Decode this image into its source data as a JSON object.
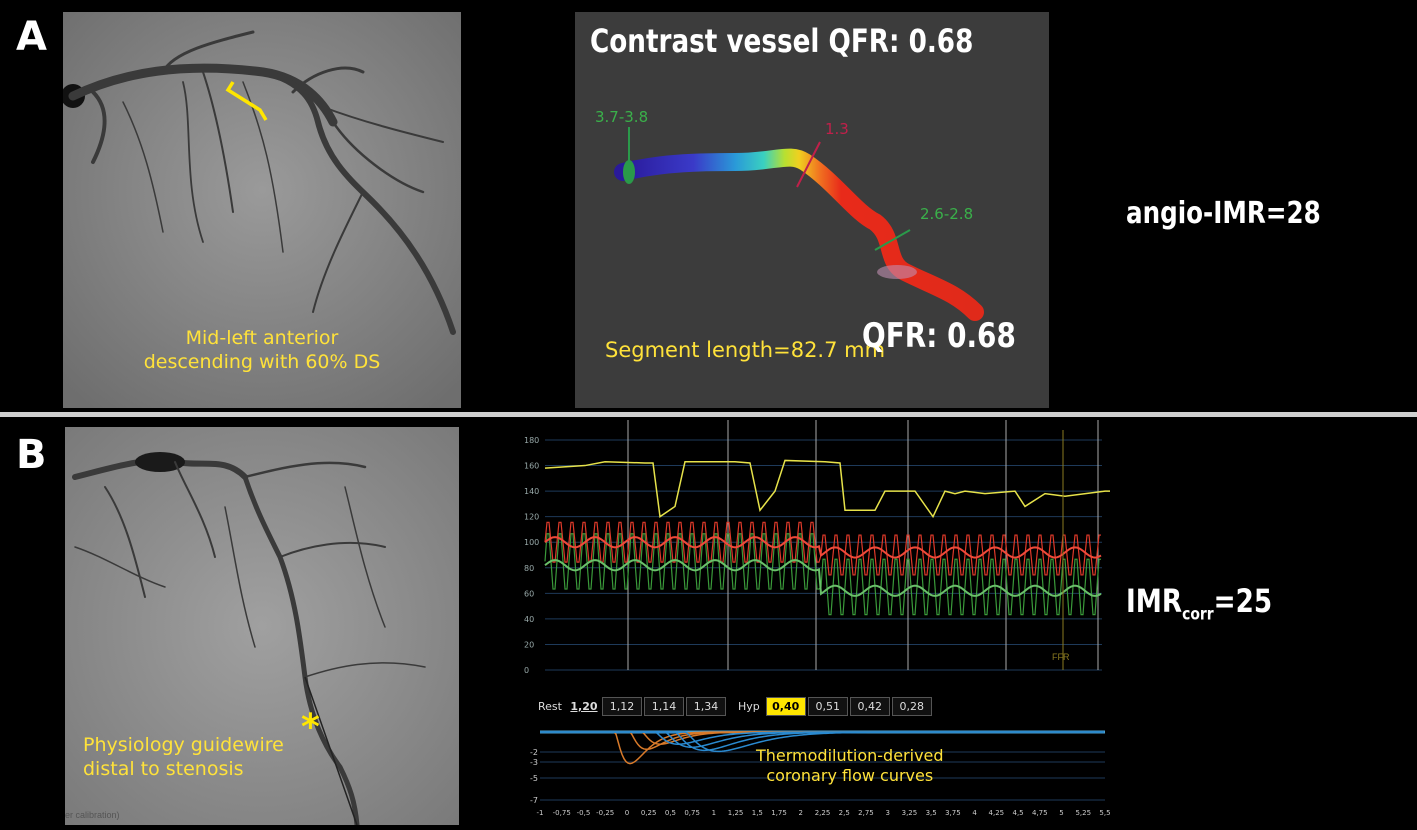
{
  "panelA": {
    "label": "A",
    "angio_caption": [
      "Mid-left anterior",
      "descending with 60% DS"
    ],
    "qfr_title": "Contrast vessel QFR: 0.68",
    "markers": {
      "proximal": "3.7-3.8",
      "lesion": "1.3",
      "distal": "2.6-2.8"
    },
    "segment_length": "Segment length=82.7 mm",
    "qfr_value": "QFR: 0.68",
    "result": "angio-IMR=28"
  },
  "panelB": {
    "label": "B",
    "angio_caption": [
      "Physiology guidewire",
      "distal to stenosis"
    ],
    "asterisk": "*",
    "calib_text": "er calibration)",
    "result_prefix": "IMR",
    "result_sub": "corr",
    "result_suffix": "=25",
    "pressure_yticks": [
      "180",
      "160",
      "140",
      "120",
      "100",
      "80",
      "60",
      "40",
      "20",
      "0"
    ],
    "ffr_label": "FFR",
    "rest_label": "Rest",
    "rest_values": [
      "1,20",
      "1,12",
      "1,14",
      "1,34"
    ],
    "hyp_label": "Hyp",
    "hyp_values": [
      "0,40",
      "0,51",
      "0,42",
      "0,28"
    ],
    "thermo_caption": [
      "Thermodilution-derived",
      "coronary flow curves"
    ],
    "thermo_yticks": [
      "-2",
      "-3",
      "-5",
      "-7"
    ],
    "thermo_xticks": [
      "-1",
      "-0,75",
      "-0,5",
      "-0,25",
      "0",
      "0,25",
      "0,5",
      "0,75",
      "1",
      "1,25",
      "1,5",
      "1,75",
      "2",
      "2,25",
      "2,5",
      "2,75",
      "3",
      "3,25",
      "3,5",
      "3,75",
      "4",
      "4,25",
      "4,5",
      "4,75",
      "5",
      "5,25",
      "5,5"
    ]
  },
  "colors": {
    "caption": "#ffe23a",
    "pressure_aortic": "#e6e24a",
    "pressure_distal": "#e03a2a",
    "pressure_green": "#3a9a3a",
    "thermo_blue": "#2a8ad0",
    "thermo_orange": "#d87a2a"
  }
}
